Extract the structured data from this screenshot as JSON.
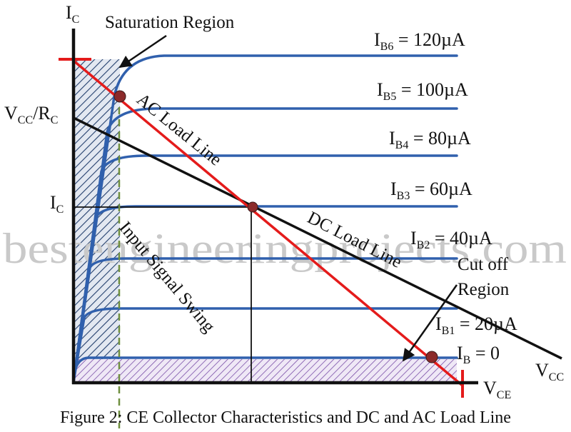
{
  "figure": {
    "caption": "Figure 2: CE Collector Characteristics and DC and AC Load Line",
    "watermark": "bestengineeringprojects.com"
  },
  "axes": {
    "y_label_main": "I",
    "y_label_sub": "C",
    "x_label_main": "V",
    "x_label_sub": "CE"
  },
  "y_markers": {
    "vcc_rc": {
      "v1": "V",
      "s1": "CC",
      "slash": "/R",
      "s2": "C"
    },
    "ic": {
      "main": "I",
      "sub": "C"
    }
  },
  "x_markers": {
    "vcc": {
      "main": "V",
      "sub": "CC"
    }
  },
  "curves": [
    {
      "main": "I",
      "sub": "B6",
      "value": " = 120µA"
    },
    {
      "main": "I",
      "sub": "B5",
      "value": " = 100µA"
    },
    {
      "main": "I",
      "sub": "B4",
      "value": " = 80µA"
    },
    {
      "main": "I",
      "sub": "B3",
      "value": " = 60µA"
    },
    {
      "main": "I",
      "sub": "B2",
      "value": " = 40µA"
    },
    {
      "main": "I",
      "sub": "B1",
      "value": " = 20µA"
    },
    {
      "main": "I",
      "sub": "B",
      "value": " = 0"
    }
  ],
  "annotations": {
    "saturation": "Saturation Region",
    "cutoff_line1": "Cut off",
    "cutoff_line2": "Region",
    "ac_load_line": "AC Load Line",
    "dc_load_line": "DC Load Line",
    "input_swing": "Input Signal Swing"
  },
  "colors": {
    "curve": "#3060ad",
    "ac_line": "#e41b1b",
    "dc_line": "#111111",
    "point": "#8b2a2a",
    "saturation_hatch": "#24406e",
    "cutoff_hatch": "#7a4fa8",
    "guide": "#6f8f3f"
  }
}
